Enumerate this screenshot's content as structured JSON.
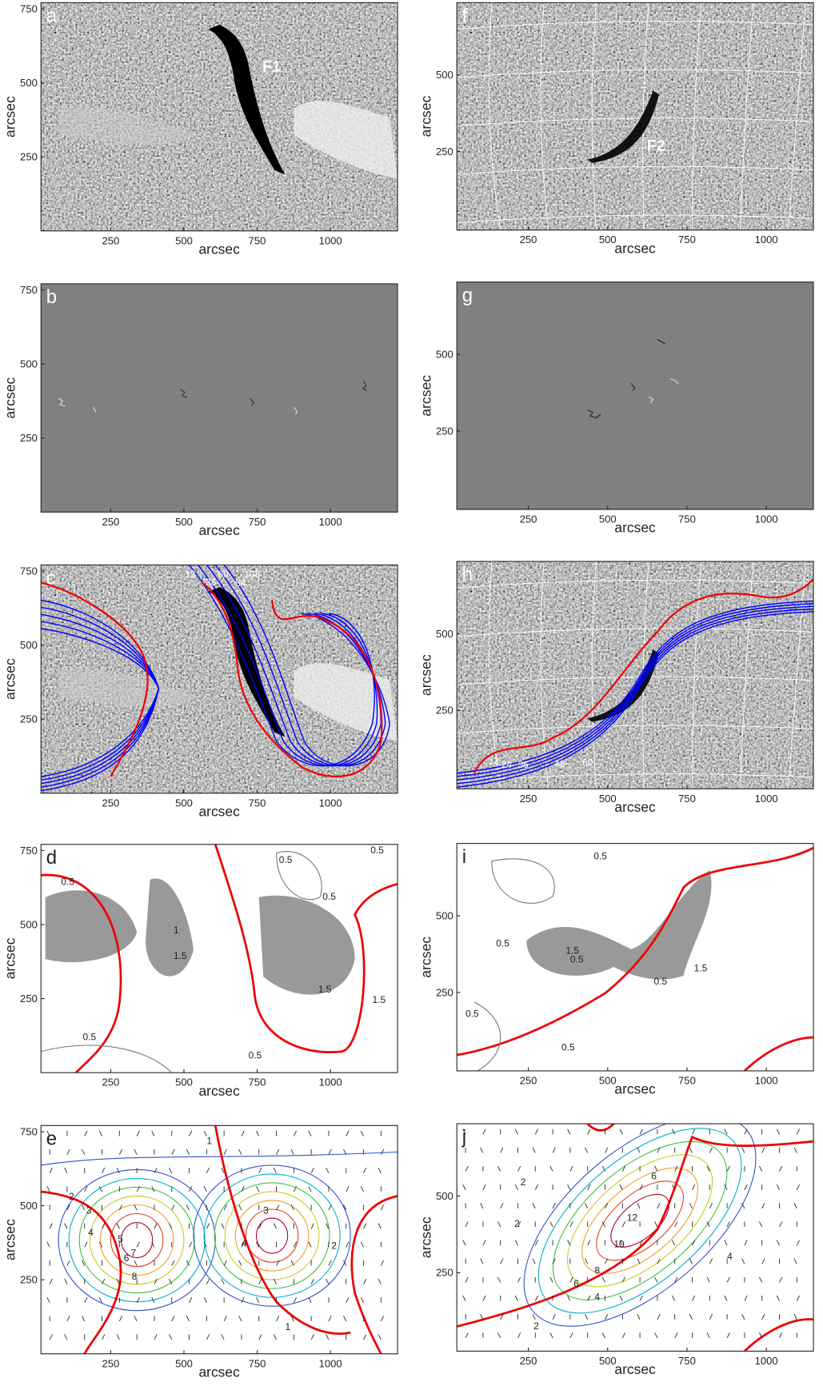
{
  "panels": [
    {
      "letter": "a",
      "xlabel": "arcsec",
      "ylabel": "arcsec",
      "xticks": [
        250,
        500,
        750,
        1000
      ],
      "yticks": [
        750,
        500,
        250
      ],
      "annotations": [
        "F1"
      ]
    },
    {
      "letter": "b",
      "xlabel": "arcsec",
      "ylabel": "arcsec",
      "xticks": [
        250,
        500,
        750,
        1000
      ],
      "yticks": [
        750,
        500,
        250
      ],
      "annotations": []
    },
    {
      "letter": "c",
      "xlabel": "arcsec",
      "ylabel": "arcsec",
      "xticks": [
        250,
        500,
        750,
        1000
      ],
      "yticks": [
        750,
        500,
        250
      ],
      "annotations": [
        "12",
        "36",
        "60",
        "84",
        "108"
      ]
    },
    {
      "letter": "d",
      "xlabel": "arcsec",
      "ylabel": "arcsec",
      "xticks": [
        250,
        500,
        750,
        1000
      ],
      "yticks": [
        750,
        500,
        250
      ],
      "annotations": [
        "0.5",
        "0.5",
        "0.5",
        "0.5",
        "1",
        "1.5",
        "1.5",
        "1.5",
        "0.5",
        "0.5"
      ]
    },
    {
      "letter": "e",
      "xlabel": "arcsec",
      "ylabel": "arcsec",
      "xticks": [
        250,
        500,
        750,
        1000
      ],
      "yticks": [
        750,
        500,
        250
      ],
      "annotations": [
        "1",
        "2",
        "3",
        "4",
        "5",
        "6",
        "7",
        "8",
        "3",
        "4",
        "2",
        "1"
      ]
    },
    {
      "letter": "f",
      "xlabel": "arcsec",
      "ylabel": "arcsec",
      "xticks": [
        250,
        500,
        750,
        1000
      ],
      "yticks": [
        500,
        250
      ],
      "annotations": [
        "F2"
      ]
    },
    {
      "letter": "g",
      "xlabel": "arcsec",
      "ylabel": "arcsec",
      "xticks": [
        250,
        500,
        750,
        1000
      ],
      "yticks": [
        500,
        250
      ],
      "annotations": []
    },
    {
      "letter": "h",
      "xlabel": "arcsec",
      "ylabel": "arcsec",
      "xticks": [
        250,
        500,
        750,
        1000
      ],
      "yticks": [
        500,
        250
      ],
      "annotations": [
        "12",
        "24",
        "36",
        "48",
        "60"
      ]
    },
    {
      "letter": "i",
      "xlabel": "arcsec",
      "ylabel": "arcsec",
      "xticks": [
        250,
        500,
        750,
        1000
      ],
      "yticks": [
        500,
        250
      ],
      "annotations": [
        "0.5",
        "0.5",
        "0.5",
        "1.5",
        "1.5",
        "0.5",
        "0.5",
        "0.5"
      ]
    },
    {
      "letter": "j",
      "xlabel": "arcsec",
      "ylabel": "arcsec",
      "xticks": [
        250,
        500,
        750,
        1000
      ],
      "yticks": [
        500,
        250
      ],
      "annotations": [
        "2",
        "2",
        "4",
        "6",
        "8",
        "10",
        "12",
        "2",
        "4",
        "6"
      ]
    }
  ]
}
